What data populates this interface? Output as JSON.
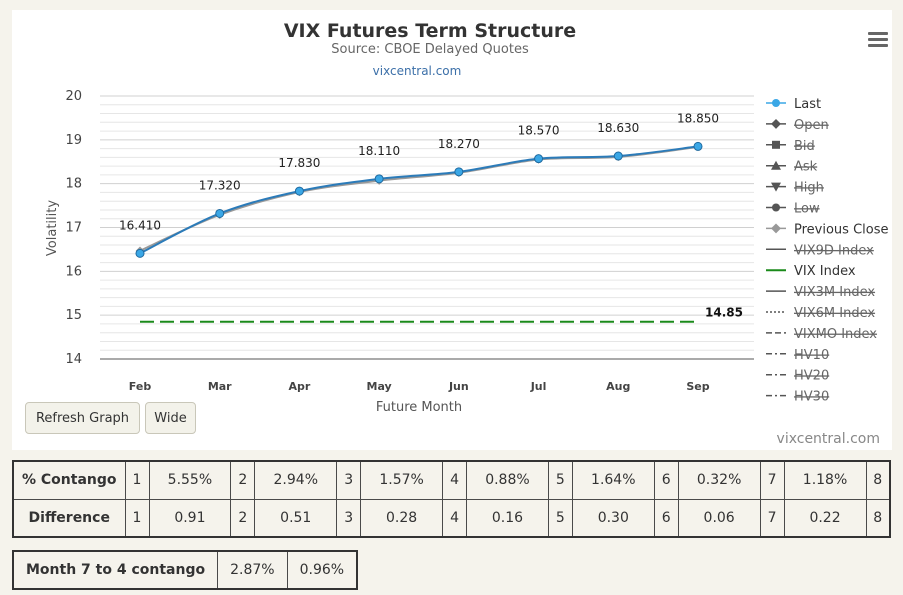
{
  "header": {
    "title": "VIX Futures Term Structure",
    "subtitle": "Source: CBOE Delayed Quotes",
    "link": "vixcentral.com"
  },
  "credits": "vixcentral.com",
  "buttons": {
    "refresh": "Refresh Graph",
    "wide": "Wide"
  },
  "chart_data": {
    "type": "line",
    "title": "VIX Futures Term Structure",
    "subtitle": "Source: CBOE Delayed Quotes",
    "xlabel": "Future Month",
    "ylabel": "Volatility",
    "categories": [
      "Feb",
      "Mar",
      "Apr",
      "May",
      "Jun",
      "Jul",
      "Aug",
      "Sep"
    ],
    "ylim": [
      14,
      20
    ],
    "yticks": [
      20,
      19,
      18,
      17,
      16,
      15,
      14
    ],
    "grid": true,
    "legend_position": "right",
    "series": [
      {
        "name": "Last",
        "values": [
          16.41,
          17.32,
          17.83,
          18.11,
          18.27,
          18.57,
          18.63,
          18.85
        ],
        "color": "#3aa7e6",
        "visible": true
      },
      {
        "name": "Previous Close",
        "values": [
          16.47,
          17.29,
          17.81,
          18.07,
          18.25,
          18.55,
          18.61,
          18.84
        ],
        "color": "#999999",
        "visible": true
      },
      {
        "name": "VIX Index",
        "values": [
          14.85,
          14.85,
          14.85,
          14.85,
          14.85,
          14.85,
          14.85,
          14.85
        ],
        "color": "#1a8a1a",
        "visible": true,
        "dashed": true
      }
    ],
    "data_labels": [
      "16.410",
      "17.320",
      "17.830",
      "18.110",
      "18.270",
      "18.570",
      "18.630",
      "18.850"
    ],
    "vix_label": "14.85",
    "legend": [
      {
        "name": "Last",
        "visible": true,
        "symbol": "circle",
        "color": "#3aa7e6"
      },
      {
        "name": "Open",
        "visible": false,
        "symbol": "diamond",
        "color": "#555"
      },
      {
        "name": "Bid",
        "visible": false,
        "symbol": "square",
        "color": "#555"
      },
      {
        "name": "Ask",
        "visible": false,
        "symbol": "triangle",
        "color": "#555"
      },
      {
        "name": "High",
        "visible": false,
        "symbol": "triangle-down",
        "color": "#555"
      },
      {
        "name": "Low",
        "visible": false,
        "symbol": "circle",
        "color": "#555"
      },
      {
        "name": "Previous Close",
        "visible": true,
        "symbol": "diamond",
        "color": "#999999"
      },
      {
        "name": "VIX9D Index",
        "visible": false,
        "symbol": "line",
        "color": "#666"
      },
      {
        "name": "VIX Index",
        "visible": true,
        "symbol": "line",
        "color": "#1a8a1a"
      },
      {
        "name": "VIX3M Index",
        "visible": false,
        "symbol": "line",
        "color": "#666"
      },
      {
        "name": "VIX6M Index",
        "visible": false,
        "symbol": "dotted",
        "color": "#666"
      },
      {
        "name": "VIXMO Index",
        "visible": false,
        "symbol": "dashed",
        "color": "#666"
      },
      {
        "name": "HV10",
        "visible": false,
        "symbol": "dashdot",
        "color": "#666"
      },
      {
        "name": "HV20",
        "visible": false,
        "symbol": "dashdot",
        "color": "#666"
      },
      {
        "name": "HV30",
        "visible": false,
        "symbol": "dashdot",
        "color": "#666"
      }
    ]
  },
  "contango_table": {
    "contango_label": "% Contango",
    "difference_label": "Difference",
    "indices": [
      "1",
      "2",
      "3",
      "4",
      "5",
      "6",
      "7",
      "8"
    ],
    "contango": [
      "5.55%",
      "2.94%",
      "1.57%",
      "0.88%",
      "1.64%",
      "0.32%",
      "1.18%"
    ],
    "difference": [
      "0.91",
      "0.51",
      "0.28",
      "0.16",
      "0.30",
      "0.06",
      "0.22"
    ]
  },
  "month74": {
    "label": "Month 7 to 4 contango",
    "value1": "2.87%",
    "value2": "0.96%"
  }
}
